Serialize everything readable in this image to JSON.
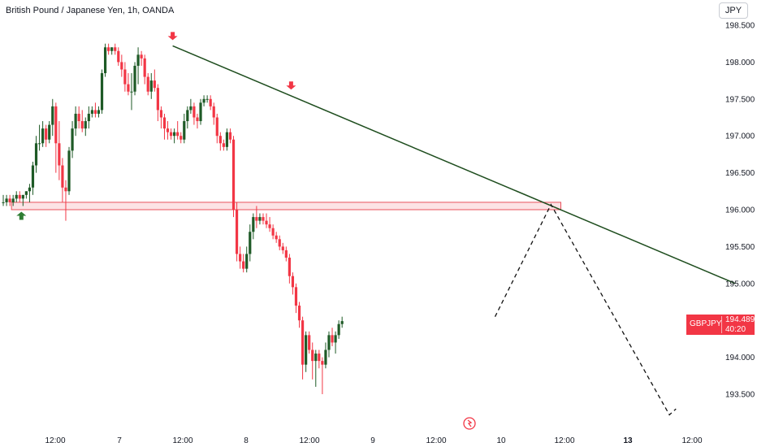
{
  "header": {
    "title": "British Pound / Japanese Yen, 1h, OANDA",
    "currency": "JPY"
  },
  "price_tag": {
    "symbol": "GBPJPY",
    "price": "194.489",
    "countdown": "40:20"
  },
  "colors": {
    "up": "#1e5a26",
    "down": "#f23645",
    "trendline": "#1e4d1e",
    "zone_fill": "#fbd7da",
    "zone_border": "#e8505b",
    "arrow_down": "#f23645",
    "arrow_up": "#2e7d32",
    "projection": "#111111"
  },
  "chart_data": {
    "type": "candlestick",
    "symbol": "GBPJPY",
    "timeframe": "1h",
    "x_ticks": [
      {
        "label": "12:00",
        "bold": false,
        "t": 20
      },
      {
        "label": "7",
        "bold": false,
        "t": 37
      },
      {
        "label": "12:00",
        "bold": false,
        "t": 57
      },
      {
        "label": "8",
        "bold": false,
        "t": 78
      },
      {
        "label": "12:00",
        "bold": false,
        "t": 98
      },
      {
        "label": "9",
        "bold": false,
        "t": 118
      },
      {
        "label": "12:00",
        "bold": false,
        "t": 138
      },
      {
        "label": "10",
        "bold": false,
        "t": 158
      },
      {
        "label": "12:00",
        "bold": false,
        "t": 178
      },
      {
        "label": "13",
        "bold": true,
        "t": 198
      },
      {
        "label": "12:00",
        "bold": false,
        "t": 218
      }
    ],
    "y_ticks": [
      193.5,
      194.0,
      194.5,
      195.0,
      195.5,
      196.0,
      196.5,
      197.0,
      197.5,
      198.0,
      198.5
    ],
    "ylim": [
      193.2,
      198.8
    ],
    "xlim": [
      0,
      230
    ],
    "candles": [
      [
        196.1,
        196.2,
        196.05,
        196.1
      ],
      [
        196.1,
        196.2,
        196.05,
        196.15
      ],
      [
        196.15,
        196.2,
        196.05,
        196.1
      ],
      [
        196.1,
        196.2,
        196.05,
        196.15
      ],
      [
        196.15,
        196.25,
        196.1,
        196.2
      ],
      [
        196.2,
        196.25,
        196.1,
        196.15
      ],
      [
        196.15,
        196.2,
        196.05,
        196.2
      ],
      [
        196.2,
        196.25,
        196.15,
        196.25
      ],
      [
        196.25,
        196.35,
        196.1,
        196.3
      ],
      [
        196.3,
        196.65,
        196.2,
        196.6
      ],
      [
        196.6,
        197.0,
        196.5,
        196.9
      ],
      [
        196.9,
        197.15,
        196.8,
        196.9
      ],
      [
        196.9,
        197.2,
        196.85,
        197.1
      ],
      [
        197.1,
        197.15,
        196.85,
        196.95
      ],
      [
        196.95,
        197.2,
        196.9,
        197.15
      ],
      [
        197.15,
        197.5,
        197.0,
        197.4
      ],
      [
        197.4,
        197.45,
        196.5,
        196.9
      ],
      [
        196.9,
        197.2,
        196.4,
        196.6
      ],
      [
        196.6,
        196.7,
        196.1,
        196.3
      ],
      [
        196.3,
        196.4,
        195.85,
        196.25
      ],
      [
        196.25,
        196.85,
        196.2,
        196.8
      ],
      [
        196.8,
        197.2,
        196.7,
        197.1
      ],
      [
        197.1,
        197.4,
        197.0,
        197.3
      ],
      [
        197.3,
        197.4,
        197.1,
        197.2
      ],
      [
        197.2,
        197.35,
        197.05,
        197.1
      ],
      [
        197.1,
        197.25,
        197.0,
        197.2
      ],
      [
        197.2,
        197.4,
        197.1,
        197.3
      ],
      [
        197.3,
        197.4,
        197.25,
        197.35
      ],
      [
        197.35,
        197.45,
        197.25,
        197.3
      ],
      [
        197.3,
        197.4,
        197.25,
        197.35
      ],
      [
        197.35,
        197.9,
        197.3,
        197.85
      ],
      [
        197.85,
        198.25,
        197.8,
        198.2
      ],
      [
        198.2,
        198.25,
        198.1,
        198.15
      ],
      [
        198.15,
        198.2,
        198.1,
        198.2
      ],
      [
        198.2,
        198.25,
        198.1,
        198.15
      ],
      [
        198.15,
        198.2,
        197.95,
        198.0
      ],
      [
        198.0,
        198.1,
        197.8,
        197.9
      ],
      [
        197.9,
        198.0,
        197.6,
        197.7
      ],
      [
        197.7,
        197.85,
        197.55,
        197.6
      ],
      [
        197.6,
        197.85,
        197.35,
        197.6
      ],
      [
        197.6,
        198.0,
        197.55,
        197.95
      ],
      [
        197.95,
        198.2,
        197.7,
        198.1
      ],
      [
        198.1,
        198.15,
        197.95,
        198.05
      ],
      [
        198.05,
        198.1,
        197.7,
        197.8
      ],
      [
        197.8,
        197.85,
        197.55,
        197.6
      ],
      [
        197.6,
        197.85,
        197.5,
        197.75
      ],
      [
        197.75,
        197.9,
        197.6,
        197.65
      ],
      [
        197.65,
        197.7,
        197.2,
        197.35
      ],
      [
        197.35,
        197.4,
        197.1,
        197.25
      ],
      [
        197.25,
        197.3,
        196.95,
        197.1
      ],
      [
        197.1,
        197.2,
        196.95,
        197.05
      ],
      [
        197.05,
        197.1,
        196.95,
        197.0
      ],
      [
        197.0,
        197.1,
        196.9,
        197.05
      ],
      [
        197.05,
        197.2,
        196.95,
        197.0
      ],
      [
        197.0,
        197.05,
        196.9,
        196.95
      ],
      [
        196.95,
        197.3,
        196.9,
        197.2
      ],
      [
        197.2,
        197.4,
        197.1,
        197.35
      ],
      [
        197.35,
        197.5,
        197.3,
        197.4
      ],
      [
        197.4,
        197.45,
        197.15,
        197.25
      ],
      [
        197.25,
        197.3,
        197.1,
        197.2
      ],
      [
        197.2,
        197.5,
        197.15,
        197.45
      ],
      [
        197.45,
        197.55,
        197.4,
        197.5
      ],
      [
        197.5,
        197.55,
        197.45,
        197.5
      ],
      [
        197.5,
        197.55,
        197.35,
        197.4
      ],
      [
        197.4,
        197.45,
        197.15,
        197.25
      ],
      [
        197.25,
        197.3,
        196.9,
        197.0
      ],
      [
        197.0,
        197.05,
        196.8,
        196.9
      ],
      [
        196.9,
        196.95,
        196.8,
        196.85
      ],
      [
        196.85,
        197.1,
        196.8,
        197.05
      ],
      [
        197.05,
        197.1,
        196.9,
        196.95
      ],
      [
        196.95,
        197.0,
        195.9,
        196.0
      ],
      [
        196.0,
        196.1,
        195.3,
        195.4
      ],
      [
        195.4,
        195.5,
        195.2,
        195.3
      ],
      [
        195.3,
        195.4,
        195.15,
        195.2
      ],
      [
        195.2,
        195.5,
        195.15,
        195.4
      ],
      [
        195.4,
        195.8,
        195.3,
        195.7
      ],
      [
        195.7,
        195.95,
        195.6,
        195.9
      ],
      [
        195.9,
        196.05,
        195.75,
        195.85
      ],
      [
        195.85,
        195.95,
        195.8,
        195.9
      ],
      [
        195.9,
        195.95,
        195.8,
        195.85
      ],
      [
        195.85,
        195.95,
        195.75,
        195.8
      ],
      [
        195.8,
        195.9,
        195.7,
        195.75
      ],
      [
        195.75,
        195.8,
        195.6,
        195.65
      ],
      [
        195.65,
        195.7,
        195.55,
        195.6
      ],
      [
        195.6,
        195.65,
        195.45,
        195.5
      ],
      [
        195.5,
        195.55,
        195.4,
        195.45
      ],
      [
        195.45,
        195.5,
        195.3,
        195.35
      ],
      [
        195.35,
        195.4,
        195.0,
        195.1
      ],
      [
        195.1,
        195.15,
        194.85,
        194.95
      ],
      [
        194.95,
        195.0,
        194.6,
        194.7
      ],
      [
        194.7,
        194.75,
        194.4,
        194.5
      ],
      [
        194.5,
        194.55,
        193.7,
        193.9
      ],
      [
        193.9,
        194.35,
        193.8,
        194.3
      ],
      [
        194.3,
        194.35,
        194.05,
        194.1
      ],
      [
        194.1,
        194.2,
        193.7,
        193.95
      ],
      [
        193.95,
        194.1,
        193.6,
        194.05
      ],
      [
        194.05,
        194.1,
        193.85,
        193.95
      ],
      [
        193.95,
        194.0,
        193.5,
        193.9
      ],
      [
        193.9,
        194.2,
        193.85,
        194.1
      ],
      [
        194.1,
        194.35,
        194.0,
        194.3
      ],
      [
        194.3,
        194.4,
        194.15,
        194.2
      ],
      [
        194.2,
        194.35,
        194.05,
        194.3
      ],
      [
        194.3,
        194.5,
        194.25,
        194.45
      ],
      [
        194.45,
        194.55,
        194.4,
        194.49
      ]
    ],
    "support_zone": {
      "t_start": 3,
      "t_end": 170,
      "low": 196.0,
      "high": 196.1
    },
    "trendline": [
      {
        "t": 52,
        "price": 198.22
      },
      {
        "t": 223,
        "price": 195.0
      }
    ],
    "projection": [
      {
        "t": 150,
        "price": 194.55
      },
      {
        "t": 167,
        "price": 196.07
      },
      {
        "t": 203,
        "price": 193.22
      },
      {
        "t": 205,
        "price": 193.3
      }
    ],
    "arrows": [
      {
        "dir": "down",
        "t": 52,
        "price": 198.22
      },
      {
        "dir": "down",
        "t": 88,
        "price": 197.55
      },
      {
        "dir": "up",
        "t": 6,
        "price": 196.05
      }
    ]
  }
}
